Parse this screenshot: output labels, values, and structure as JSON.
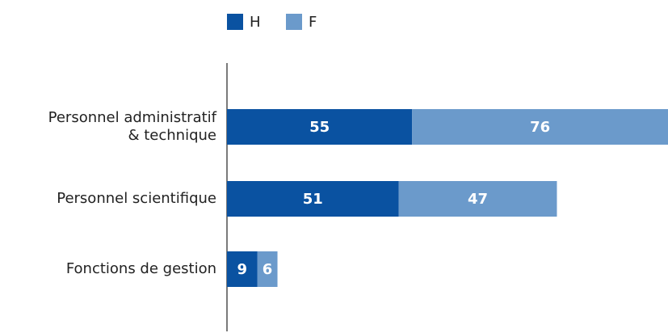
{
  "chart_data": {
    "type": "stacked-bar-horizontal",
    "categories": [
      "Personnel administratif\n& technique",
      "Personnel scientifique",
      "Fonctions de gestion"
    ],
    "series": [
      {
        "name": "H",
        "color": "#0a52a1",
        "values": [
          55,
          51,
          9
        ]
      },
      {
        "name": "F",
        "color": "#6b9acb",
        "values": [
          76,
          47,
          6
        ]
      }
    ]
  }
}
